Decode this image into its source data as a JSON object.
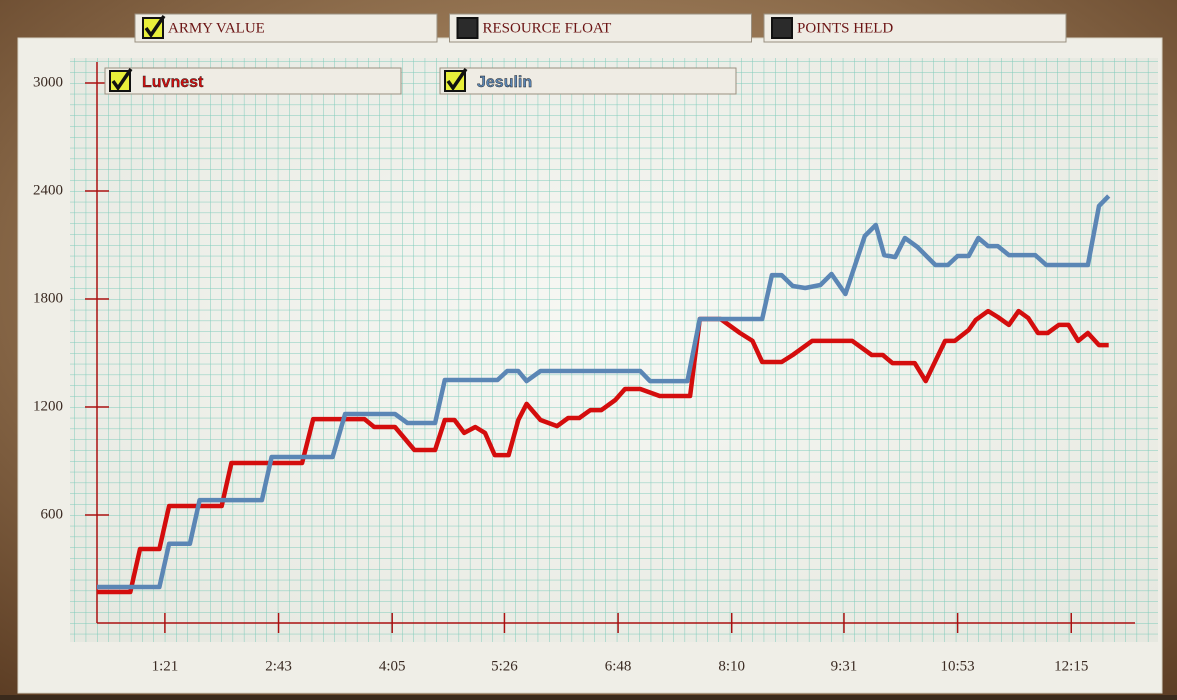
{
  "toggles": [
    {
      "label": "ARMY VALUE",
      "checked": true
    },
    {
      "label": "RESOURCE FLOAT",
      "checked": false
    },
    {
      "label": "POINTS HELD",
      "checked": false
    }
  ],
  "chart_data": {
    "type": "line",
    "xlim": [
      32,
      781
    ],
    "ylim": [
      0,
      3000
    ],
    "yticks": [
      600,
      1200,
      1800,
      2400,
      3000
    ],
    "xticks": [
      {
        "value": 81,
        "label": "1:21"
      },
      {
        "value": 163,
        "label": "2:43"
      },
      {
        "value": 245,
        "label": "4:05"
      },
      {
        "value": 326,
        "label": "5:26"
      },
      {
        "value": 408,
        "label": "6:48"
      },
      {
        "value": 490,
        "label": "8:10"
      },
      {
        "value": 571,
        "label": "9:31"
      },
      {
        "value": 653,
        "label": "10:53"
      },
      {
        "value": 735,
        "label": "12:15"
      }
    ],
    "grid": true,
    "series": [
      {
        "name": "Luvnest",
        "color": "#d40d0d",
        "x": [
          32,
          56,
          63,
          77,
          84,
          122,
          129,
          180,
          188,
          225,
          232,
          247,
          261,
          276,
          283,
          290,
          297,
          305,
          312,
          319,
          329,
          336,
          342,
          352,
          364,
          372,
          380,
          388,
          396,
          406,
          413,
          424,
          438,
          460,
          467,
          482,
          496,
          505,
          512,
          526,
          534,
          548,
          577,
          591,
          599,
          606,
          622,
          630,
          644,
          651,
          661,
          666,
          675,
          682,
          690,
          697,
          704,
          711,
          718,
          726,
          733,
          740,
          747,
          755,
          762
        ],
        "values": [
          172,
          172,
          411,
          411,
          650,
          650,
          889,
          889,
          1133,
          1133,
          1089,
          1089,
          961,
          961,
          1128,
          1128,
          1056,
          1089,
          1056,
          933,
          933,
          1128,
          1217,
          1128,
          1094,
          1139,
          1139,
          1183,
          1183,
          1239,
          1300,
          1300,
          1261,
          1261,
          1689,
          1689,
          1611,
          1567,
          1450,
          1450,
          1489,
          1567,
          1567,
          1489,
          1489,
          1444,
          1444,
          1344,
          1567,
          1567,
          1628,
          1683,
          1733,
          1700,
          1656,
          1733,
          1694,
          1611,
          1611,
          1656,
          1656,
          1567,
          1611,
          1544,
          1544
        ]
      },
      {
        "name": "Jesulin",
        "color": "#5b86b5",
        "x": [
          32,
          77,
          84,
          99,
          106,
          151,
          158,
          202,
          211,
          247,
          256,
          276,
          283,
          321,
          328,
          336,
          342,
          352,
          424,
          431,
          458,
          467,
          512,
          519,
          526,
          534,
          543,
          554,
          562,
          572,
          586,
          594,
          600,
          608,
          615,
          624,
          637,
          646,
          653,
          661,
          668,
          675,
          682,
          690,
          709,
          717,
          747,
          755,
          762
        ],
        "values": [
          200,
          200,
          440,
          440,
          683,
          683,
          922,
          922,
          1161,
          1161,
          1111,
          1111,
          1350,
          1350,
          1400,
          1400,
          1344,
          1400,
          1400,
          1344,
          1344,
          1689,
          1689,
          1933,
          1933,
          1872,
          1861,
          1878,
          1939,
          1828,
          2150,
          2211,
          2044,
          2033,
          2139,
          2089,
          1989,
          1989,
          2039,
          2039,
          2139,
          2094,
          2094,
          2044,
          2044,
          1989,
          1989,
          2317,
          2372
        ]
      }
    ]
  }
}
